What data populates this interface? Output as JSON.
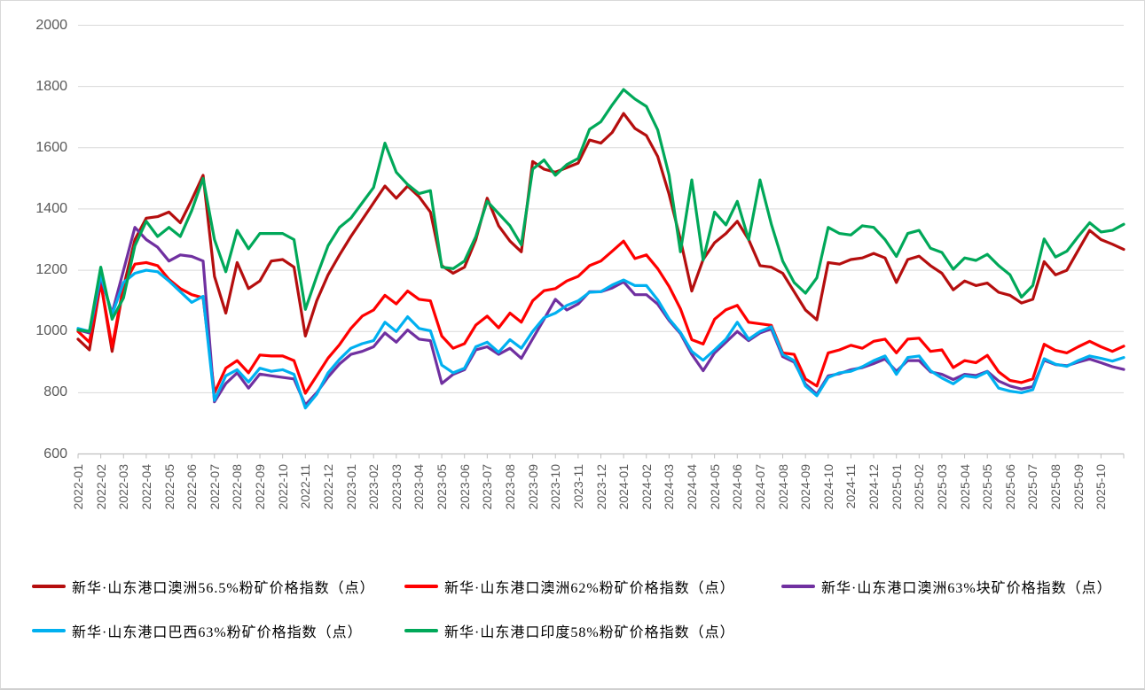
{
  "chart_data": {
    "type": "line",
    "title": "",
    "xlabel": "",
    "ylabel": "",
    "ylim": [
      600,
      2000
    ],
    "y_ticks": [
      600,
      800,
      1000,
      1200,
      1400,
      1600,
      1800,
      2000
    ],
    "grid": "horizontal",
    "legend_position": "bottom",
    "axis_label_color": "#595959",
    "gridline_color": "#d9d9d9",
    "axis_line_color": "#bfbfbf",
    "points_per_month": 2,
    "x_month_labels": [
      "2022-01",
      "2022-02",
      "2022-03",
      "2022-04",
      "2022-05",
      "2022-06",
      "2022-07",
      "2022-08",
      "2022-09",
      "2022-10",
      "2022-11",
      "2022-12",
      "2023-01",
      "2023-02",
      "2023-03",
      "2023-04",
      "2023-05",
      "2023-06",
      "2023-07",
      "2023-08",
      "2023-09",
      "2023-10",
      "2023-11",
      "2023-12",
      "2024-01",
      "2024-02",
      "2024-03",
      "2024-04",
      "2024-05",
      "2024-06",
      "2024-07",
      "2024-08",
      "2024-09",
      "2024-10",
      "2024-11",
      "2024-12",
      "2025-01",
      "2025-02",
      "2025-03",
      "2025-04",
      "2025-05",
      "2025-06",
      "2025-07",
      "2025-08",
      "2025-09",
      "2025-10"
    ],
    "series": [
      {
        "name": "新华·山东港口澳洲56.5%粉矿价格指数（点）",
        "color": "#b50e0e",
        "values": [
          975,
          940,
          1160,
          935,
          1145,
          1300,
          1370,
          1375,
          1390,
          1355,
          1430,
          1510,
          1180,
          1060,
          1225,
          1140,
          1165,
          1230,
          1235,
          1210,
          985,
          1100,
          1185,
          1250,
          1310,
          1365,
          1420,
          1475,
          1435,
          1475,
          1440,
          1390,
          1215,
          1190,
          1210,
          1300,
          1435,
          1345,
          1295,
          1260,
          1555,
          1530,
          1520,
          1535,
          1550,
          1625,
          1615,
          1650,
          1712,
          1663,
          1640,
          1571,
          1448,
          1300,
          1132,
          1235,
          1290,
          1320,
          1360,
          1300,
          1215,
          1210,
          1190,
          1130,
          1070,
          1038,
          1225,
          1220,
          1235,
          1240,
          1255,
          1240,
          1160,
          1235,
          1246,
          1215,
          1190,
          1136,
          1165,
          1150,
          1158,
          1128,
          1118,
          1093,
          1105,
          1228,
          1185,
          1200,
          1265,
          1330,
          1300,
          1285,
          1268
        ]
      },
      {
        "name": "新华·山东港口澳洲62%粉矿价格指数（点）",
        "color": "#ff0000",
        "values": [
          1000,
          965,
          1160,
          950,
          1150,
          1220,
          1225,
          1215,
          1170,
          1140,
          1120,
          1110,
          800,
          880,
          905,
          865,
          923,
          920,
          920,
          905,
          798,
          855,
          913,
          957,
          1010,
          1050,
          1070,
          1118,
          1090,
          1132,
          1105,
          1100,
          985,
          945,
          960,
          1021,
          1050,
          1012,
          1060,
          1030,
          1100,
          1133,
          1140,
          1165,
          1180,
          1215,
          1230,
          1262,
          1295,
          1238,
          1250,
          1205,
          1147,
          1074,
          973,
          959,
          1040,
          1071,
          1085,
          1030,
          1025,
          1020,
          930,
          925,
          845,
          822,
          930,
          940,
          955,
          945,
          968,
          975,
          930,
          975,
          978,
          935,
          940,
          882,
          905,
          898,
          922,
          868,
          840,
          833,
          845,
          958,
          938,
          930,
          950,
          968,
          950,
          935,
          952
        ]
      },
      {
        "name": "新华·山东港口澳洲63%块矿价格指数（点）",
        "color": "#7030a0",
        "values": [
          1005,
          995,
          1175,
          1060,
          1200,
          1340,
          1300,
          1275,
          1230,
          1250,
          1245,
          1230,
          770,
          830,
          865,
          815,
          861,
          855,
          850,
          845,
          760,
          800,
          851,
          894,
          925,
          935,
          950,
          995,
          965,
          1005,
          975,
          970,
          830,
          860,
          875,
          940,
          950,
          925,
          945,
          912,
          976,
          1040,
          1105,
          1070,
          1090,
          1130,
          1130,
          1142,
          1162,
          1120,
          1120,
          1089,
          1036,
          993,
          925,
          872,
          930,
          965,
          1000,
          970,
          995,
          1008,
          918,
          900,
          828,
          795,
          855,
          862,
          875,
          882,
          895,
          910,
          870,
          905,
          905,
          868,
          860,
          843,
          860,
          856,
          870,
          838,
          822,
          812,
          820,
          906,
          892,
          888,
          900,
          910,
          898,
          885,
          876
        ]
      },
      {
        "name": "新华·山东港口巴西63%粉矿价格指数（点）",
        "color": "#00b0f0",
        "values": [
          1010,
          1000,
          1185,
          1055,
          1160,
          1190,
          1200,
          1195,
          1165,
          1130,
          1095,
          1115,
          775,
          855,
          875,
          835,
          880,
          870,
          875,
          860,
          750,
          795,
          865,
          909,
          945,
          960,
          970,
          1030,
          1000,
          1048,
          1010,
          1002,
          890,
          865,
          880,
          950,
          965,
          932,
          973,
          945,
          1000,
          1045,
          1060,
          1085,
          1100,
          1128,
          1130,
          1152,
          1168,
          1150,
          1150,
          1103,
          1041,
          997,
          935,
          906,
          940,
          975,
          1030,
          975,
          1000,
          1015,
          925,
          905,
          822,
          790,
          850,
          865,
          870,
          885,
          905,
          920,
          860,
          915,
          920,
          872,
          848,
          829,
          855,
          850,
          868,
          815,
          805,
          800,
          810,
          911,
          893,
          886,
          905,
          920,
          912,
          903,
          915
        ]
      },
      {
        "name": "新华·山东港口印度58%粉矿价格指数（点）",
        "color": "#00a859",
        "values": [
          1005,
          1000,
          1210,
          1040,
          1110,
          1280,
          1360,
          1310,
          1340,
          1310,
          1395,
          1500,
          1300,
          1195,
          1330,
          1270,
          1320,
          1320,
          1320,
          1300,
          1072,
          1180,
          1280,
          1340,
          1370,
          1420,
          1470,
          1615,
          1520,
          1480,
          1450,
          1460,
          1210,
          1205,
          1230,
          1310,
          1425,
          1385,
          1345,
          1283,
          1530,
          1560,
          1510,
          1545,
          1565,
          1660,
          1685,
          1740,
          1790,
          1759,
          1735,
          1658,
          1510,
          1260,
          1495,
          1233,
          1390,
          1348,
          1425,
          1300,
          1495,
          1350,
          1230,
          1160,
          1125,
          1175,
          1340,
          1320,
          1315,
          1345,
          1340,
          1300,
          1245,
          1320,
          1330,
          1272,
          1258,
          1203,
          1240,
          1232,
          1252,
          1215,
          1185,
          1112,
          1150,
          1302,
          1243,
          1262,
          1310,
          1355,
          1325,
          1330,
          1350
        ]
      }
    ]
  },
  "legend": {
    "rows": [
      {
        "items": [
          0,
          1,
          2
        ]
      },
      {
        "items": [
          3,
          4
        ]
      }
    ]
  }
}
